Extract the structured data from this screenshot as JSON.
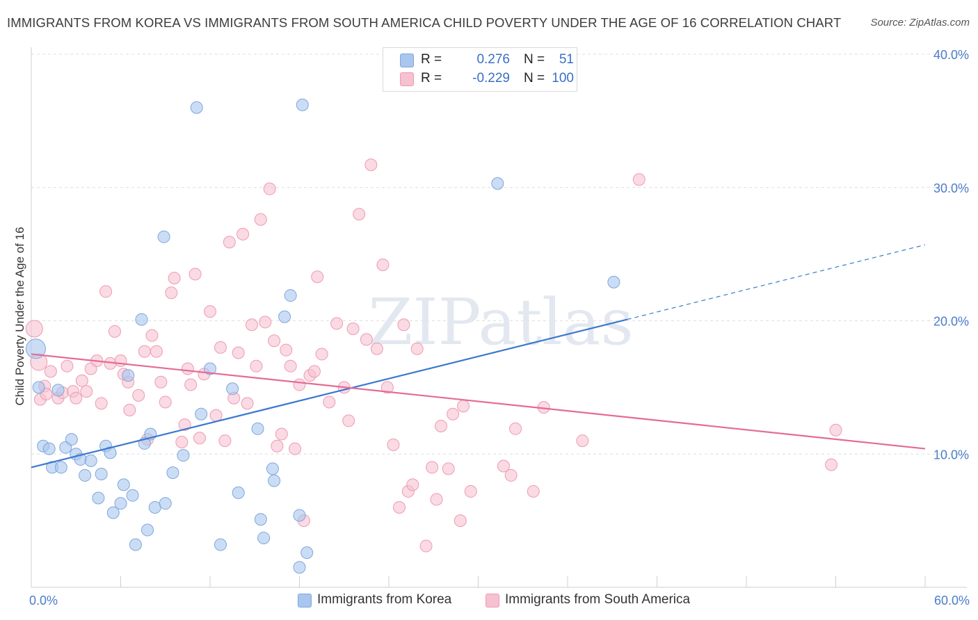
{
  "title": "IMMIGRANTS FROM KOREA VS IMMIGRANTS FROM SOUTH AMERICA CHILD POVERTY UNDER THE AGE OF 16 CORRELATION CHART",
  "source": "Source: ZipAtlas.com",
  "watermark": "ZIPatlas",
  "colors": {
    "korea_fill": "#a9c6ee",
    "korea_stroke": "#7ea6dc",
    "korea_line": "#3a78d0",
    "sa_fill": "#f6c1d0",
    "sa_stroke": "#ee9ab4",
    "sa_line": "#e46b94",
    "tick_text": "#4a7cc9"
  },
  "legend_top": [
    {
      "r_label": "R =",
      "r_value": "0.276",
      "n_label": "N =",
      "n_value": "51"
    },
    {
      "r_label": "R =",
      "r_value": "-0.229",
      "n_label": "N =",
      "n_value": "100"
    }
  ],
  "legend_bottom": [
    "Immigrants from Korea",
    "Immigrants from South America"
  ],
  "chart_data": {
    "type": "scatter",
    "title": "IMMIGRANTS FROM KOREA VS IMMIGRANTS FROM SOUTH AMERICA CHILD POVERTY UNDER THE AGE OF 16 CORRELATION CHART",
    "xlabel": "",
    "ylabel": "Child Poverty Under the Age of 16",
    "xlim": [
      0,
      60
    ],
    "ylim": [
      0,
      40
    ],
    "x_tick_labels": [
      "0.0%",
      "60.0%"
    ],
    "y_ticks": [
      10,
      20,
      30,
      40
    ],
    "y_tick_labels": [
      "10.0%",
      "20.0%",
      "30.0%",
      "40.0%"
    ],
    "grid": true,
    "legend_position": "top-center",
    "series": [
      {
        "name": "Immigrants from Korea",
        "r": 0.276,
        "n": 51,
        "trend": {
          "x": [
            0,
            40
          ],
          "y": [
            9.0,
            20.1
          ],
          "dashed_to": [
            60,
            25.7
          ]
        },
        "points": [
          [
            0.3,
            17.9
          ],
          [
            0.5,
            15.0
          ],
          [
            0.8,
            10.6
          ],
          [
            1.2,
            10.4
          ],
          [
            1.4,
            9.0
          ],
          [
            1.8,
            14.8
          ],
          [
            2.0,
            9.0
          ],
          [
            2.3,
            10.5
          ],
          [
            2.7,
            11.1
          ],
          [
            3.0,
            10.0
          ],
          [
            3.3,
            9.6
          ],
          [
            3.6,
            8.4
          ],
          [
            4.0,
            9.5
          ],
          [
            4.5,
            6.7
          ],
          [
            4.7,
            8.5
          ],
          [
            5.0,
            10.6
          ],
          [
            5.3,
            10.1
          ],
          [
            5.5,
            5.6
          ],
          [
            6.0,
            6.3
          ],
          [
            6.2,
            7.7
          ],
          [
            6.8,
            6.9
          ],
          [
            7.0,
            3.2
          ],
          [
            7.4,
            20.1
          ],
          [
            7.6,
            10.8
          ],
          [
            7.8,
            4.3
          ],
          [
            8.0,
            11.5
          ],
          [
            8.3,
            6.0
          ],
          [
            8.9,
            26.3
          ],
          [
            9.0,
            6.3
          ],
          [
            9.5,
            8.6
          ],
          [
            10.2,
            9.9
          ],
          [
            11.1,
            36.0
          ],
          [
            11.4,
            13.0
          ],
          [
            12.0,
            16.4
          ],
          [
            12.7,
            3.2
          ],
          [
            13.5,
            14.9
          ],
          [
            13.9,
            7.1
          ],
          [
            15.2,
            11.9
          ],
          [
            15.4,
            5.1
          ],
          [
            15.6,
            3.7
          ],
          [
            16.2,
            8.9
          ],
          [
            16.3,
            8.0
          ],
          [
            17.0,
            20.3
          ],
          [
            17.4,
            21.9
          ],
          [
            18.0,
            5.4
          ],
          [
            18.0,
            1.5
          ],
          [
            18.2,
            36.2
          ],
          [
            18.5,
            2.6
          ],
          [
            31.3,
            30.3
          ],
          [
            39.1,
            22.9
          ],
          [
            6.5,
            15.9
          ]
        ]
      },
      {
        "name": "Immigrants from South America",
        "r": -0.229,
        "n": 100,
        "trend": {
          "x": [
            0,
            60
          ],
          "y": [
            17.5,
            10.4
          ]
        },
        "points": [
          [
            0.2,
            19.4
          ],
          [
            0.5,
            16.9
          ],
          [
            0.6,
            14.1
          ],
          [
            0.9,
            15.1
          ],
          [
            1.0,
            14.5
          ],
          [
            1.3,
            16.2
          ],
          [
            1.8,
            14.2
          ],
          [
            2.1,
            14.6
          ],
          [
            2.4,
            16.6
          ],
          [
            2.8,
            14.7
          ],
          [
            3.0,
            14.2
          ],
          [
            3.4,
            15.5
          ],
          [
            3.7,
            14.7
          ],
          [
            4.0,
            16.4
          ],
          [
            4.4,
            17.0
          ],
          [
            4.7,
            13.8
          ],
          [
            5.0,
            22.2
          ],
          [
            5.3,
            16.8
          ],
          [
            5.6,
            19.2
          ],
          [
            6.0,
            17.0
          ],
          [
            6.2,
            16.0
          ],
          [
            6.5,
            15.4
          ],
          [
            6.6,
            13.3
          ],
          [
            7.2,
            14.4
          ],
          [
            7.6,
            17.7
          ],
          [
            7.8,
            11.1
          ],
          [
            8.1,
            18.9
          ],
          [
            8.4,
            17.7
          ],
          [
            8.7,
            15.4
          ],
          [
            9.0,
            13.9
          ],
          [
            9.4,
            22.1
          ],
          [
            9.6,
            23.2
          ],
          [
            10.1,
            10.9
          ],
          [
            10.3,
            12.2
          ],
          [
            10.5,
            16.4
          ],
          [
            10.7,
            15.2
          ],
          [
            11.0,
            23.5
          ],
          [
            11.3,
            11.2
          ],
          [
            11.6,
            16.0
          ],
          [
            12.0,
            20.7
          ],
          [
            12.4,
            12.9
          ],
          [
            12.7,
            18.0
          ],
          [
            13.0,
            11.0
          ],
          [
            13.3,
            25.9
          ],
          [
            13.6,
            14.2
          ],
          [
            13.9,
            17.6
          ],
          [
            14.2,
            26.5
          ],
          [
            14.5,
            13.8
          ],
          [
            14.8,
            19.7
          ],
          [
            15.1,
            16.6
          ],
          [
            15.4,
            27.6
          ],
          [
            15.7,
            19.9
          ],
          [
            16.0,
            29.9
          ],
          [
            16.3,
            18.5
          ],
          [
            16.5,
            10.6
          ],
          [
            16.8,
            11.5
          ],
          [
            17.1,
            17.8
          ],
          [
            17.4,
            16.6
          ],
          [
            17.7,
            10.4
          ],
          [
            18.0,
            15.2
          ],
          [
            18.3,
            5.0
          ],
          [
            18.7,
            15.9
          ],
          [
            19.0,
            16.2
          ],
          [
            19.2,
            23.3
          ],
          [
            19.5,
            17.5
          ],
          [
            20.0,
            13.9
          ],
          [
            20.5,
            19.8
          ],
          [
            21.0,
            15.0
          ],
          [
            21.3,
            12.5
          ],
          [
            21.6,
            19.4
          ],
          [
            22.0,
            28.0
          ],
          [
            22.5,
            18.6
          ],
          [
            22.8,
            31.7
          ],
          [
            23.2,
            17.9
          ],
          [
            23.6,
            24.2
          ],
          [
            23.9,
            15.0
          ],
          [
            24.3,
            10.7
          ],
          [
            24.7,
            6.0
          ],
          [
            25.0,
            19.7
          ],
          [
            25.3,
            7.2
          ],
          [
            25.6,
            7.7
          ],
          [
            25.9,
            17.9
          ],
          [
            26.5,
            3.1
          ],
          [
            26.9,
            9.0
          ],
          [
            27.2,
            6.6
          ],
          [
            27.5,
            12.1
          ],
          [
            28.0,
            8.9
          ],
          [
            28.3,
            13.0
          ],
          [
            28.8,
            5.0
          ],
          [
            29.0,
            13.6
          ],
          [
            29.5,
            7.2
          ],
          [
            31.7,
            9.1
          ],
          [
            32.2,
            8.4
          ],
          [
            32.5,
            11.9
          ],
          [
            33.7,
            7.2
          ],
          [
            34.4,
            13.5
          ],
          [
            40.8,
            30.6
          ],
          [
            53.7,
            9.2
          ],
          [
            54.0,
            11.8
          ],
          [
            37.0,
            11.0
          ]
        ]
      }
    ]
  }
}
